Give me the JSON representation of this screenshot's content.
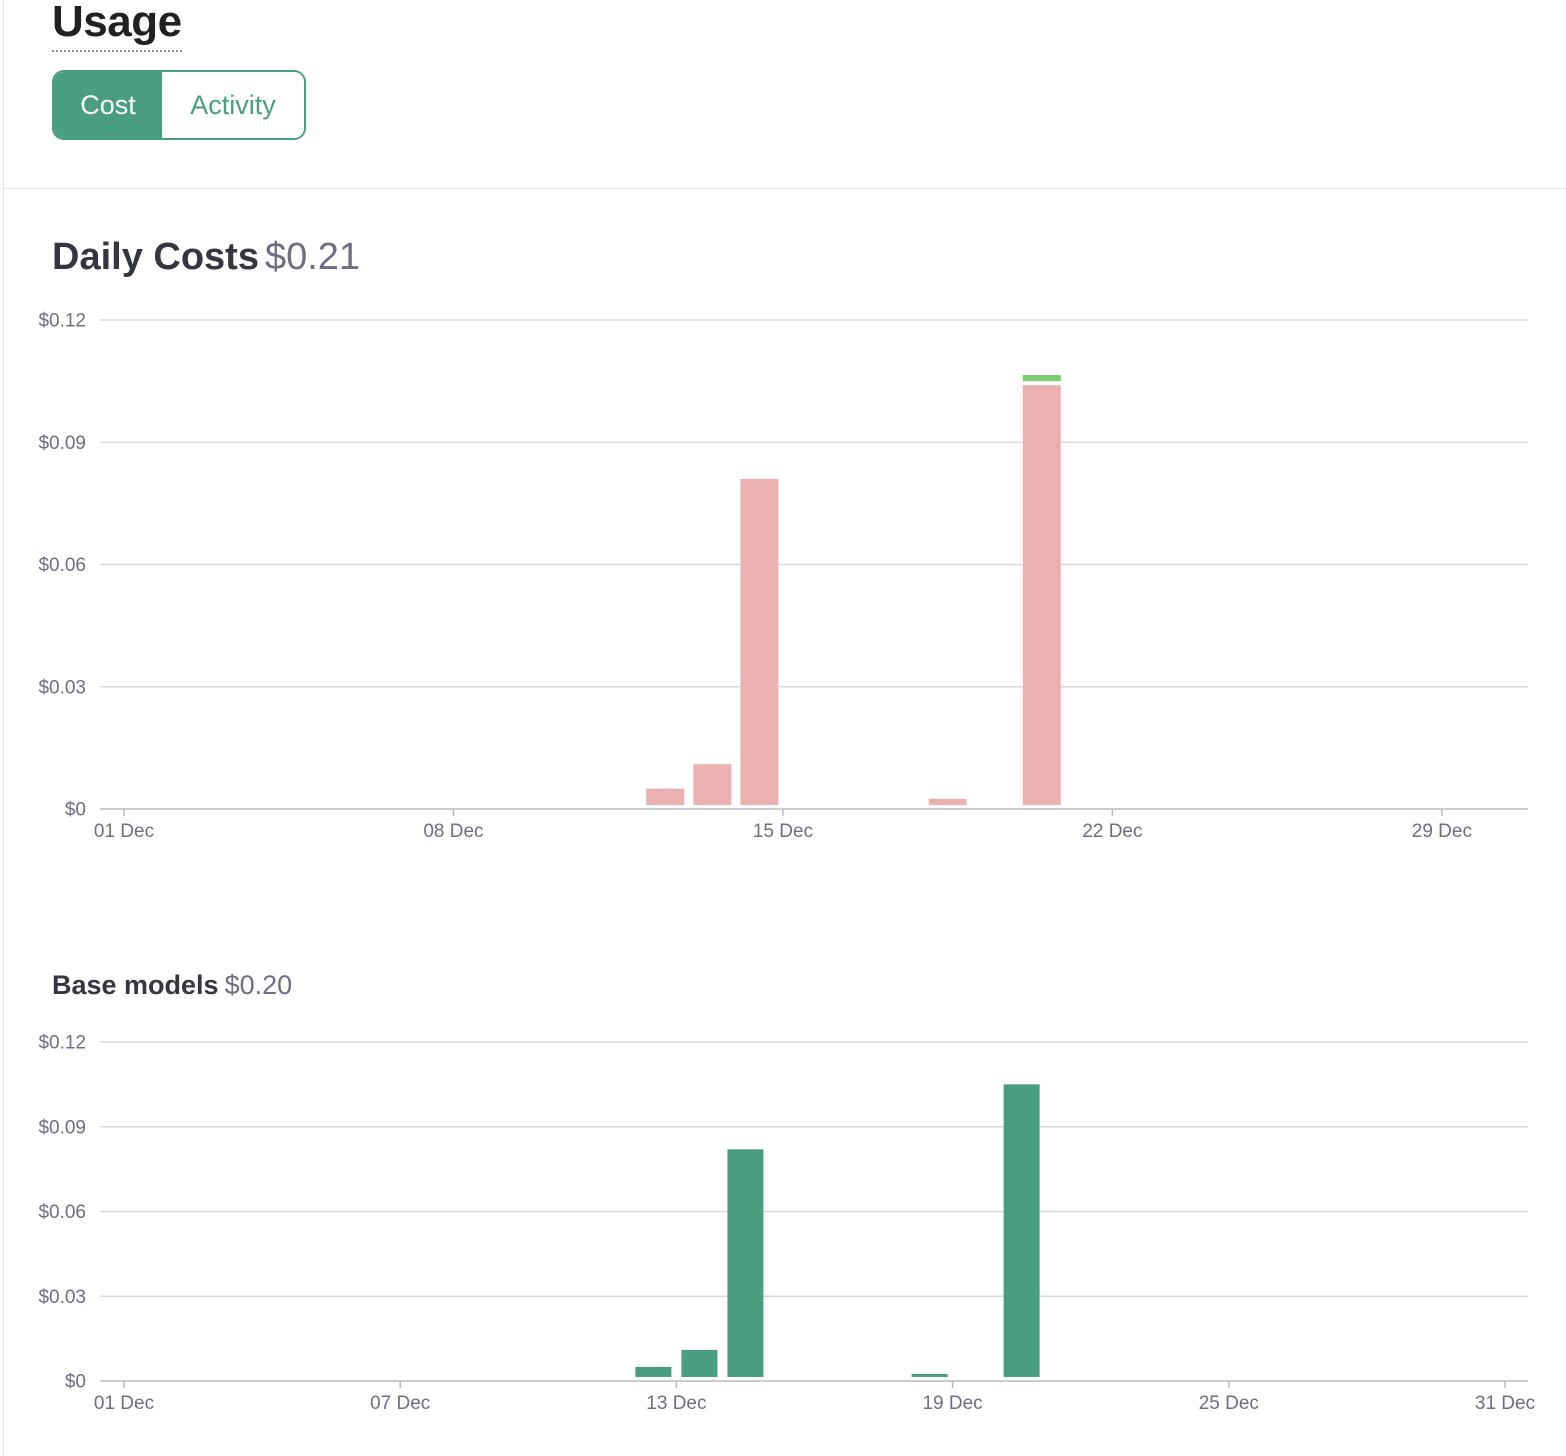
{
  "page": {
    "title": "Usage"
  },
  "toggle": {
    "cost_label": "Cost",
    "activity_label": "Activity",
    "selected": "Cost"
  },
  "colors": {
    "accent": "#4a9e80",
    "pink": "#ebb0b0",
    "light_green": "#78cc6e",
    "grid": "#d9d9e3"
  },
  "daily_costs": {
    "title": "Daily Costs",
    "total": "$0.21"
  },
  "base_models": {
    "title": "Base models",
    "total": "$0.20"
  },
  "chart_data": [
    {
      "type": "bar",
      "title": "Daily Costs",
      "stacked": true,
      "x_range": [
        "2023-12-01",
        "2023-12-31"
      ],
      "ylim": [
        0,
        0.12
      ],
      "y_ticks": [
        0,
        0.03,
        0.06,
        0.09,
        0.12
      ],
      "y_tick_labels": [
        "$0",
        "$0.03",
        "$0.06",
        "$0.09",
        "$0.12"
      ],
      "x_ticks": [
        "2023-12-01",
        "2023-12-08",
        "2023-12-15",
        "2023-12-22",
        "2023-12-29"
      ],
      "x_tick_labels": [
        "01 Dec",
        "08 Dec",
        "15 Dec",
        "22 Dec",
        "29 Dec"
      ],
      "grid": true,
      "categories": [
        "2023-12-12",
        "2023-12-13",
        "2023-12-14",
        "2023-12-18",
        "2023-12-20"
      ],
      "series": [
        {
          "color": "#ebb0b0",
          "values": [
            0.005,
            0.011,
            0.081,
            0.0025,
            0.104
          ]
        },
        {
          "color": "#78cc6e",
          "values": [
            0,
            0,
            0,
            0,
            0.0025
          ]
        }
      ]
    },
    {
      "type": "bar",
      "title": "Base models",
      "x_range": [
        "2023-12-01",
        "2023-12-31"
      ],
      "ylim": [
        0,
        0.12
      ],
      "y_ticks": [
        0,
        0.03,
        0.06,
        0.09,
        0.12
      ],
      "y_tick_labels": [
        "$0",
        "$0.03",
        "$0.06",
        "$0.09",
        "$0.12"
      ],
      "x_ticks": [
        "2023-12-01",
        "2023-12-07",
        "2023-12-13",
        "2023-12-19",
        "2023-12-25",
        "2023-12-31"
      ],
      "x_tick_labels": [
        "01 Dec",
        "07 Dec",
        "13 Dec",
        "19 Dec",
        "25 Dec",
        "31 Dec"
      ],
      "grid": true,
      "categories": [
        "2023-12-12",
        "2023-12-13",
        "2023-12-14",
        "2023-12-18",
        "2023-12-20"
      ],
      "series": [
        {
          "color": "#4a9e80",
          "values": [
            0.005,
            0.011,
            0.082,
            0.0025,
            0.105
          ]
        }
      ]
    }
  ]
}
